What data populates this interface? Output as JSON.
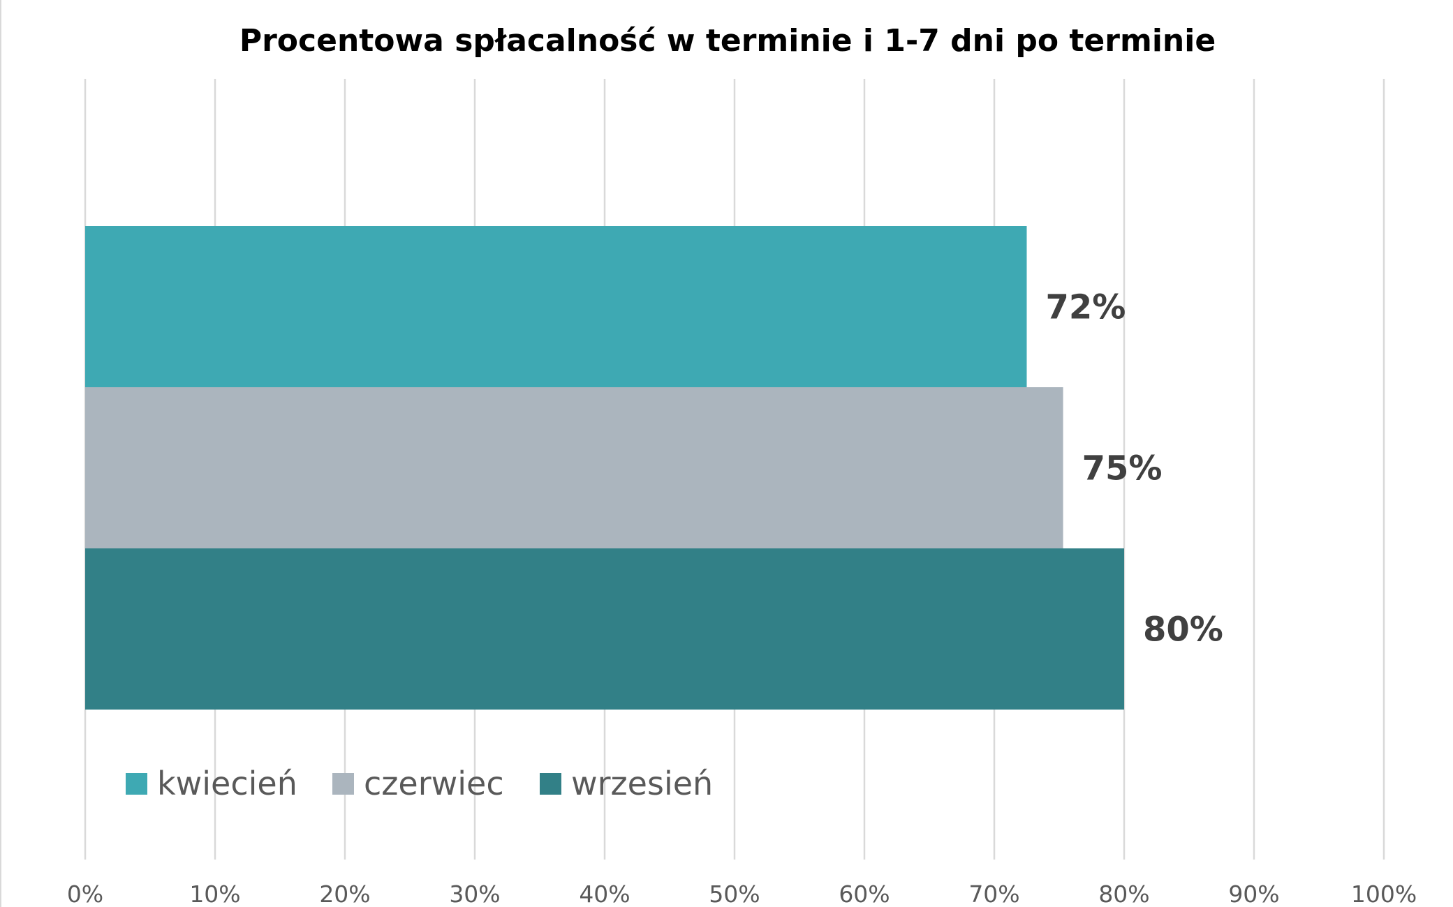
{
  "chart_data": {
    "type": "bar",
    "orientation": "horizontal",
    "title": "Procentowa spłacalność w terminie i 1-7 dni po terminie",
    "xlabel": "",
    "ylabel": "",
    "xlim": [
      0,
      100
    ],
    "x_ticks": [
      "0%",
      "10%",
      "20%",
      "30%",
      "40%",
      "50%",
      "60%",
      "70%",
      "80%",
      "90%",
      "100%"
    ],
    "grid": "vertical",
    "legend_position": "bottom-left",
    "series": [
      {
        "name": "kwiecień",
        "value": 72.5,
        "label": "72%",
        "color": "#3ea9b3"
      },
      {
        "name": "czerwiec",
        "value": 75.3,
        "label": "75%",
        "color": "#abb5be"
      },
      {
        "name": "wrzesień",
        "value": 80,
        "label": "80%",
        "color": "#328087"
      }
    ]
  }
}
